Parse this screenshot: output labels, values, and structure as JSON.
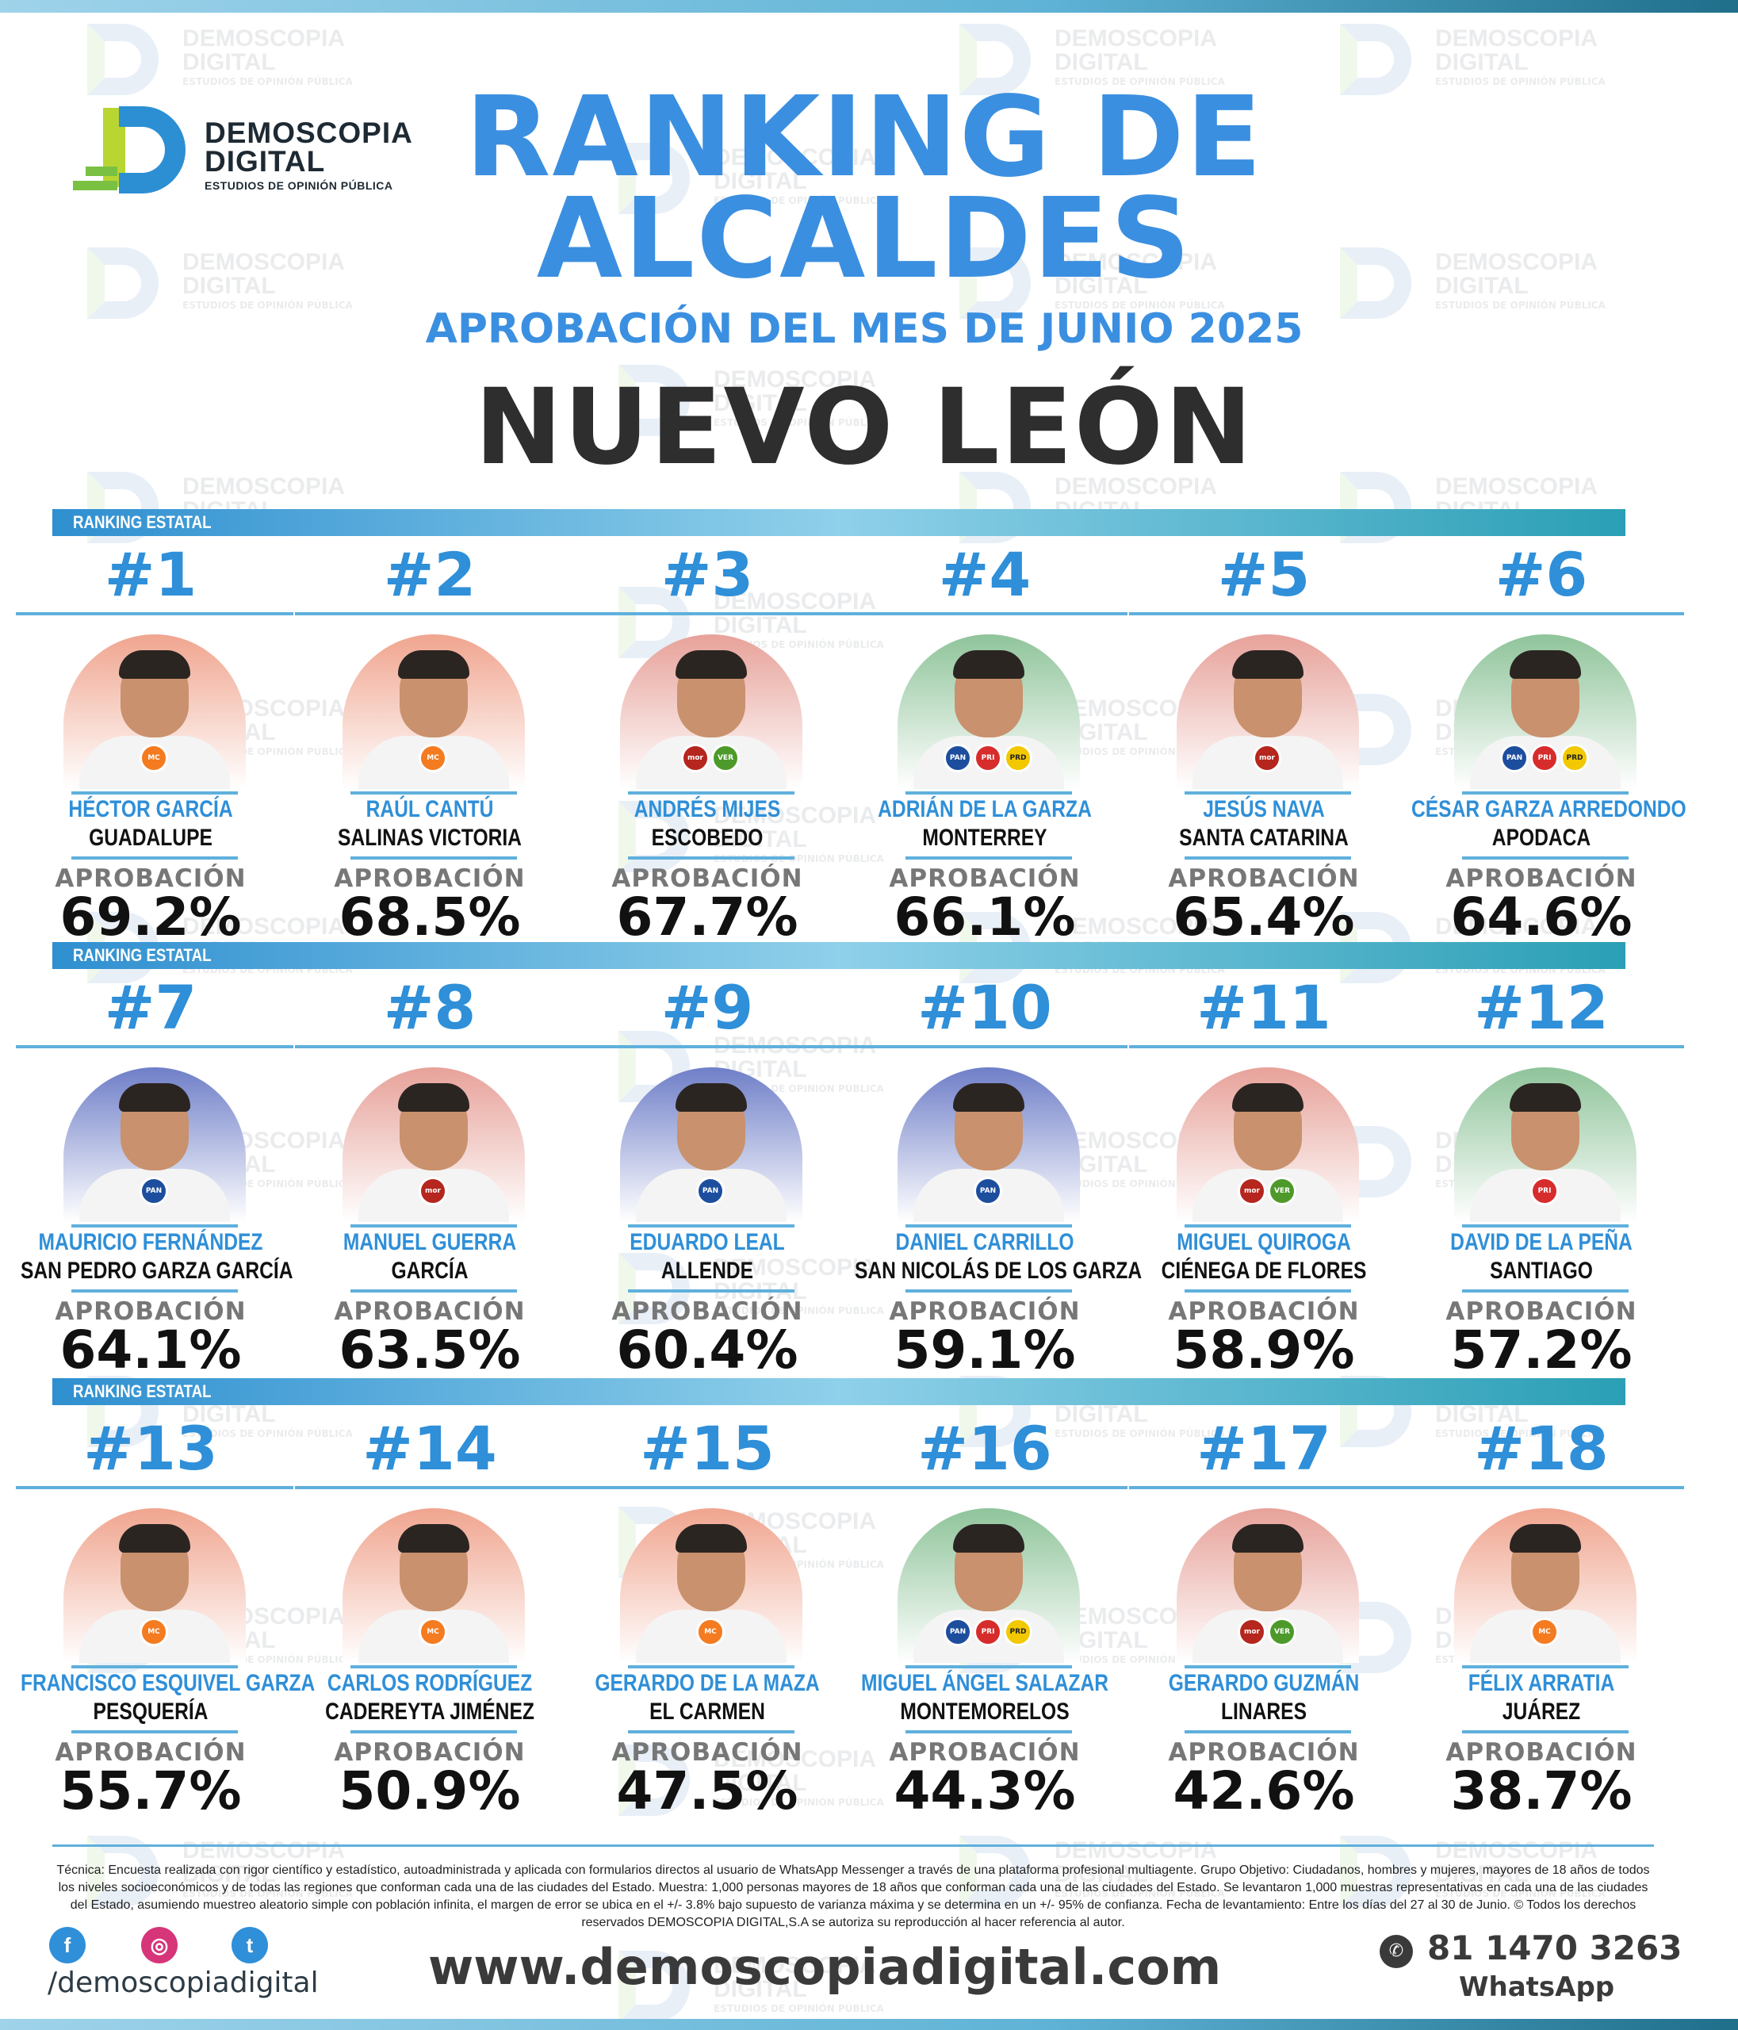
{
  "watermark": {
    "title_line1": "DEMOSCOPIA",
    "title_line2": "DIGITAL",
    "subtitle": "ESTUDIOS DE OPINIÓN PÚBLICA"
  },
  "logo": {
    "title_line1": "DEMOSCOPIA",
    "title_line2": "DIGITAL",
    "subtitle": "ESTUDIOS DE OPINIÓN PÚBLICA"
  },
  "header": {
    "title_line1": "RANKING DE",
    "title_line2": "ALCALDES",
    "subtitle": "APROBACIÓN DEL MES DE JUNIO 2025",
    "state": "NUEVO LEÓN"
  },
  "section_label": "RANKING ESTATAL",
  "approval_label": "APROBACIÓN",
  "mayors": [
    {
      "rank": "#1",
      "name": "HÉCTOR GARCÍA",
      "city": "GUADALUPE",
      "approval": "69.2%",
      "bg": "#f0a58f",
      "parties": [
        "MC"
      ]
    },
    {
      "rank": "#2",
      "name": "RAÚL CANTÚ",
      "city": "SALINAS VICTORIA",
      "approval": "68.5%",
      "bg": "#f0a58f",
      "parties": [
        "MC"
      ]
    },
    {
      "rank": "#3",
      "name": "ANDRÉS MIJES",
      "city": "ESCOBEDO",
      "approval": "67.7%",
      "bg": "#e7a29a",
      "parties": [
        "morena",
        "VERDE"
      ]
    },
    {
      "rank": "#4",
      "name": "ADRIÁN DE LA GARZA",
      "city": "MONTERREY",
      "approval": "66.1%",
      "bg": "#8fc49a",
      "parties": [
        "PAN",
        "PRI",
        "PRD"
      ]
    },
    {
      "rank": "#5",
      "name": "JESÚS NAVA",
      "city": "SANTA CATARINA",
      "approval": "65.4%",
      "bg": "#e7a29a",
      "parties": [
        "morena"
      ]
    },
    {
      "rank": "#6",
      "name": "CÉSAR GARZA ARREDONDO",
      "city": "APODACA",
      "approval": "64.6%",
      "bg": "#8fc49a",
      "parties": [
        "PAN",
        "PRI",
        "PRD"
      ]
    },
    {
      "rank": "#7",
      "name": "MAURICIO FERNÁNDEZ",
      "city": "SAN PEDRO GARZA GARCÍA",
      "approval": "64.1%",
      "bg": "#6f7fc8",
      "parties": [
        "PAN"
      ]
    },
    {
      "rank": "#8",
      "name": "MANUEL GUERRA",
      "city": "GARCÍA",
      "approval": "63.5%",
      "bg": "#e7a29a",
      "parties": [
        "morena"
      ]
    },
    {
      "rank": "#9",
      "name": "EDUARDO LEAL",
      "city": "ALLENDE",
      "approval": "60.4%",
      "bg": "#6f7fc8",
      "parties": [
        "PAN"
      ]
    },
    {
      "rank": "#10",
      "name": "DANIEL CARRILLO",
      "city": "SAN NICOLÁS DE LOS GARZA",
      "approval": "59.1%",
      "bg": "#6f7fc8",
      "parties": [
        "PAN"
      ]
    },
    {
      "rank": "#11",
      "name": "MIGUEL QUIROGA",
      "city": "CIÉNEGA DE FLORES",
      "approval": "58.9%",
      "bg": "#e7a29a",
      "parties": [
        "morena",
        "VERDE"
      ]
    },
    {
      "rank": "#12",
      "name": "DAVID DE LA PEÑA",
      "city": "SANTIAGO",
      "approval": "57.2%",
      "bg": "#8fc49a",
      "parties": [
        "PRI"
      ]
    },
    {
      "rank": "#13",
      "name": "FRANCISCO ESQUIVEL GARZA",
      "city": "PESQUERÍA",
      "approval": "55.7%",
      "bg": "#f0a58f",
      "parties": [
        "MC"
      ]
    },
    {
      "rank": "#14",
      "name": "CARLOS RODRÍGUEZ",
      "city": "CADEREYTA JIMÉNEZ",
      "approval": "50.9%",
      "bg": "#f0a58f",
      "parties": [
        "MC"
      ]
    },
    {
      "rank": "#15",
      "name": "GERARDO DE LA MAZA",
      "city": "EL CARMEN",
      "approval": "47.5%",
      "bg": "#f0a58f",
      "parties": [
        "MC"
      ]
    },
    {
      "rank": "#16",
      "name": "MIGUEL ÁNGEL SALAZAR",
      "city": "MONTEMORELOS",
      "approval": "44.3%",
      "bg": "#8fc49a",
      "parties": [
        "PAN",
        "PRI",
        "PRD"
      ]
    },
    {
      "rank": "#17",
      "name": "GERARDO GUZMÁN",
      "city": "LINARES",
      "approval": "42.6%",
      "bg": "#e7a29a",
      "parties": [
        "morena",
        "VERDE"
      ]
    },
    {
      "rank": "#18",
      "name": "FÉLIX ARRATIA",
      "city": "JUÁREZ",
      "approval": "38.7%",
      "bg": "#f0a58f",
      "parties": [
        "MC"
      ]
    }
  ],
  "party_colors": {
    "MC": "#f47b20",
    "morena": "#b5261e",
    "VERDE": "#4d9a2a",
    "PAN": "#1d4e9e",
    "PRI": "#d72c2c",
    "PRD": "#f2c800"
  },
  "footer": {
    "technical_note": "Técnica: Encuesta realizada con rigor científico y estadístico, autoadministrada y aplicada con formularios directos al usuario de WhatsApp Messenger a través de una plataforma profesional multiagente. Grupo Objetivo: Ciudadanos, hombres y mujeres, mayores de 18 años de todos los niveles socioeconómicos y de todas las regiones que conforman cada una de las ciudades del Estado. Muestra: 1,000 personas mayores de 18 años que conforman cada una de las ciudades del Estado. Se levantaron 1,000 muestras representativas en cada una de las ciudades del Estado, asumiendo muestreo aleatorio simple con población infinita, el margen de error se ubica en el +/- 3.8% bajo supuesto de varianza máxima y se determina en un +/- 95% de confianza. Fecha de levantamiento: Entre los días del 27 al 30 de Junio. © Todos los derechos reservados DEMOSCOPIA DIGITAL,S.A se autoriza su reproducción al hacer referencia al autor.",
    "social_handle": "/demoscopiadigital",
    "website": "www.demoscopiadigital.com",
    "phone": "81 1470 3263",
    "whatsapp_label": "WhatsApp"
  }
}
